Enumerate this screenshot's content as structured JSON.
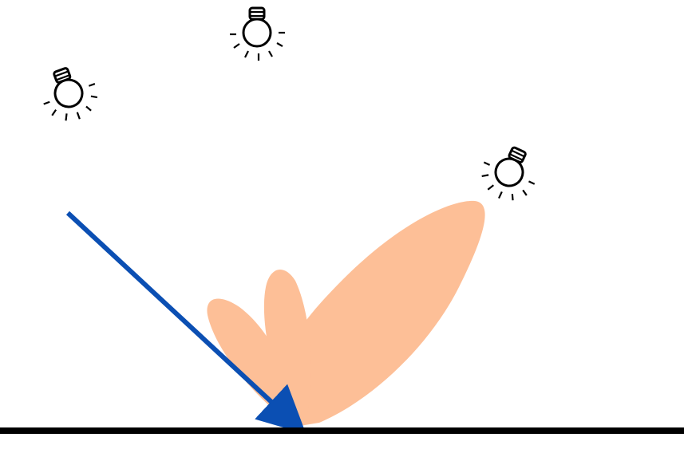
{
  "diagram": {
    "description_visible_text": "",
    "colors": {
      "background": "#ffffff",
      "surface": "#000000",
      "incident_ray": "#0b4fb3",
      "lobes": "#fdbf97",
      "bulb_stroke": "#000000"
    },
    "icons": {
      "light_sources": [
        "lightbulb-icon",
        "lightbulb-icon",
        "lightbulb-icon"
      ]
    }
  }
}
